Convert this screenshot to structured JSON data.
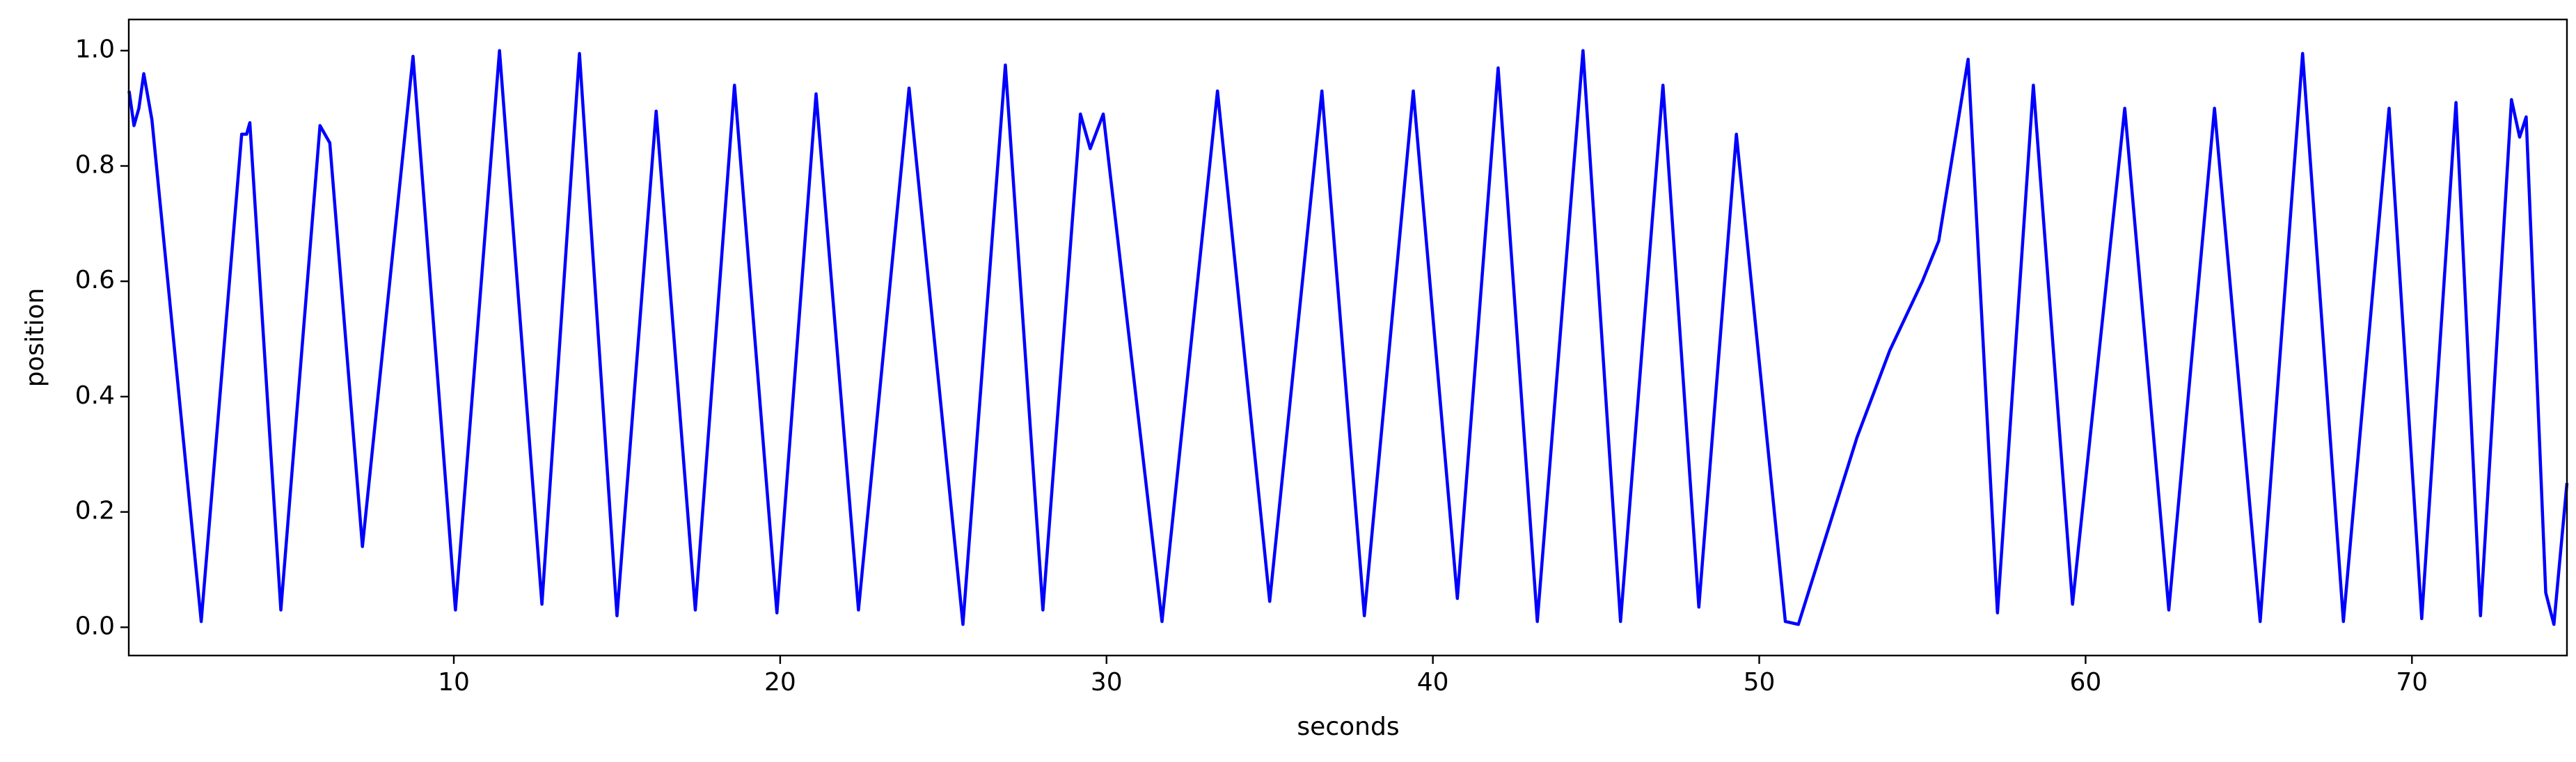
{
  "chart_data": {
    "type": "line",
    "xlabel": "seconds",
    "ylabel": "position",
    "xlim": [
      0.04,
      74.75
    ],
    "ylim": [
      -0.049,
      1.054
    ],
    "xticks": [
      10,
      20,
      30,
      40,
      50,
      60,
      70
    ],
    "yticks": [
      {
        "value": 0,
        "label": "0.0"
      },
      0.2,
      0.4,
      0.6,
      0.8,
      {
        "value": 1,
        "label": "1.0"
      }
    ],
    "grid": false,
    "series": [
      {
        "color": "#0000ff",
        "x": [
          0.05,
          0.2,
          0.35,
          0.5,
          0.75,
          2.26,
          3.5,
          3.65,
          3.75,
          4.7,
          5.9,
          6.2,
          7.2,
          8.75,
          10.05,
          11.4,
          12.7,
          13.85,
          15.0,
          16.2,
          17.4,
          18.6,
          19.9,
          21.1,
          22.4,
          23.95,
          25.6,
          26.9,
          28.05,
          29.2,
          29.5,
          29.9,
          31.7,
          33.4,
          35.0,
          36.6,
          37.9,
          39.4,
          40.75,
          42.0,
          43.2,
          44.6,
          45.75,
          47.05,
          48.15,
          49.3,
          50.8,
          51.2,
          53.0,
          54.0,
          55.0,
          55.5,
          56.4,
          57.3,
          58.4,
          59.6,
          61.2,
          62.55,
          63.95,
          65.35,
          66.65,
          67.9,
          69.3,
          70.3,
          71.35,
          72.1,
          73.05,
          73.3,
          73.5,
          74.1,
          74.35,
          74.75
        ],
        "values": [
          0.93,
          0.87,
          0.9,
          0.96,
          0.88,
          0.01,
          0.855,
          0.855,
          0.875,
          0.03,
          0.87,
          0.84,
          0.14,
          0.99,
          0.03,
          1.0,
          0.04,
          0.995,
          0.02,
          0.895,
          0.03,
          0.94,
          0.025,
          0.925,
          0.03,
          0.935,
          0.005,
          0.975,
          0.03,
          0.89,
          0.83,
          0.89,
          0.01,
          0.93,
          0.045,
          0.93,
          0.02,
          0.93,
          0.05,
          0.97,
          0.01,
          1.0,
          0.01,
          0.94,
          0.035,
          0.855,
          0.01,
          0.005,
          0.33,
          0.48,
          0.6,
          0.67,
          0.985,
          0.025,
          0.94,
          0.04,
          0.9,
          0.03,
          0.9,
          0.01,
          0.995,
          0.01,
          0.9,
          0.015,
          0.91,
          0.02,
          0.915,
          0.85,
          0.885,
          0.06,
          0.005,
          0.25
        ]
      }
    ]
  }
}
